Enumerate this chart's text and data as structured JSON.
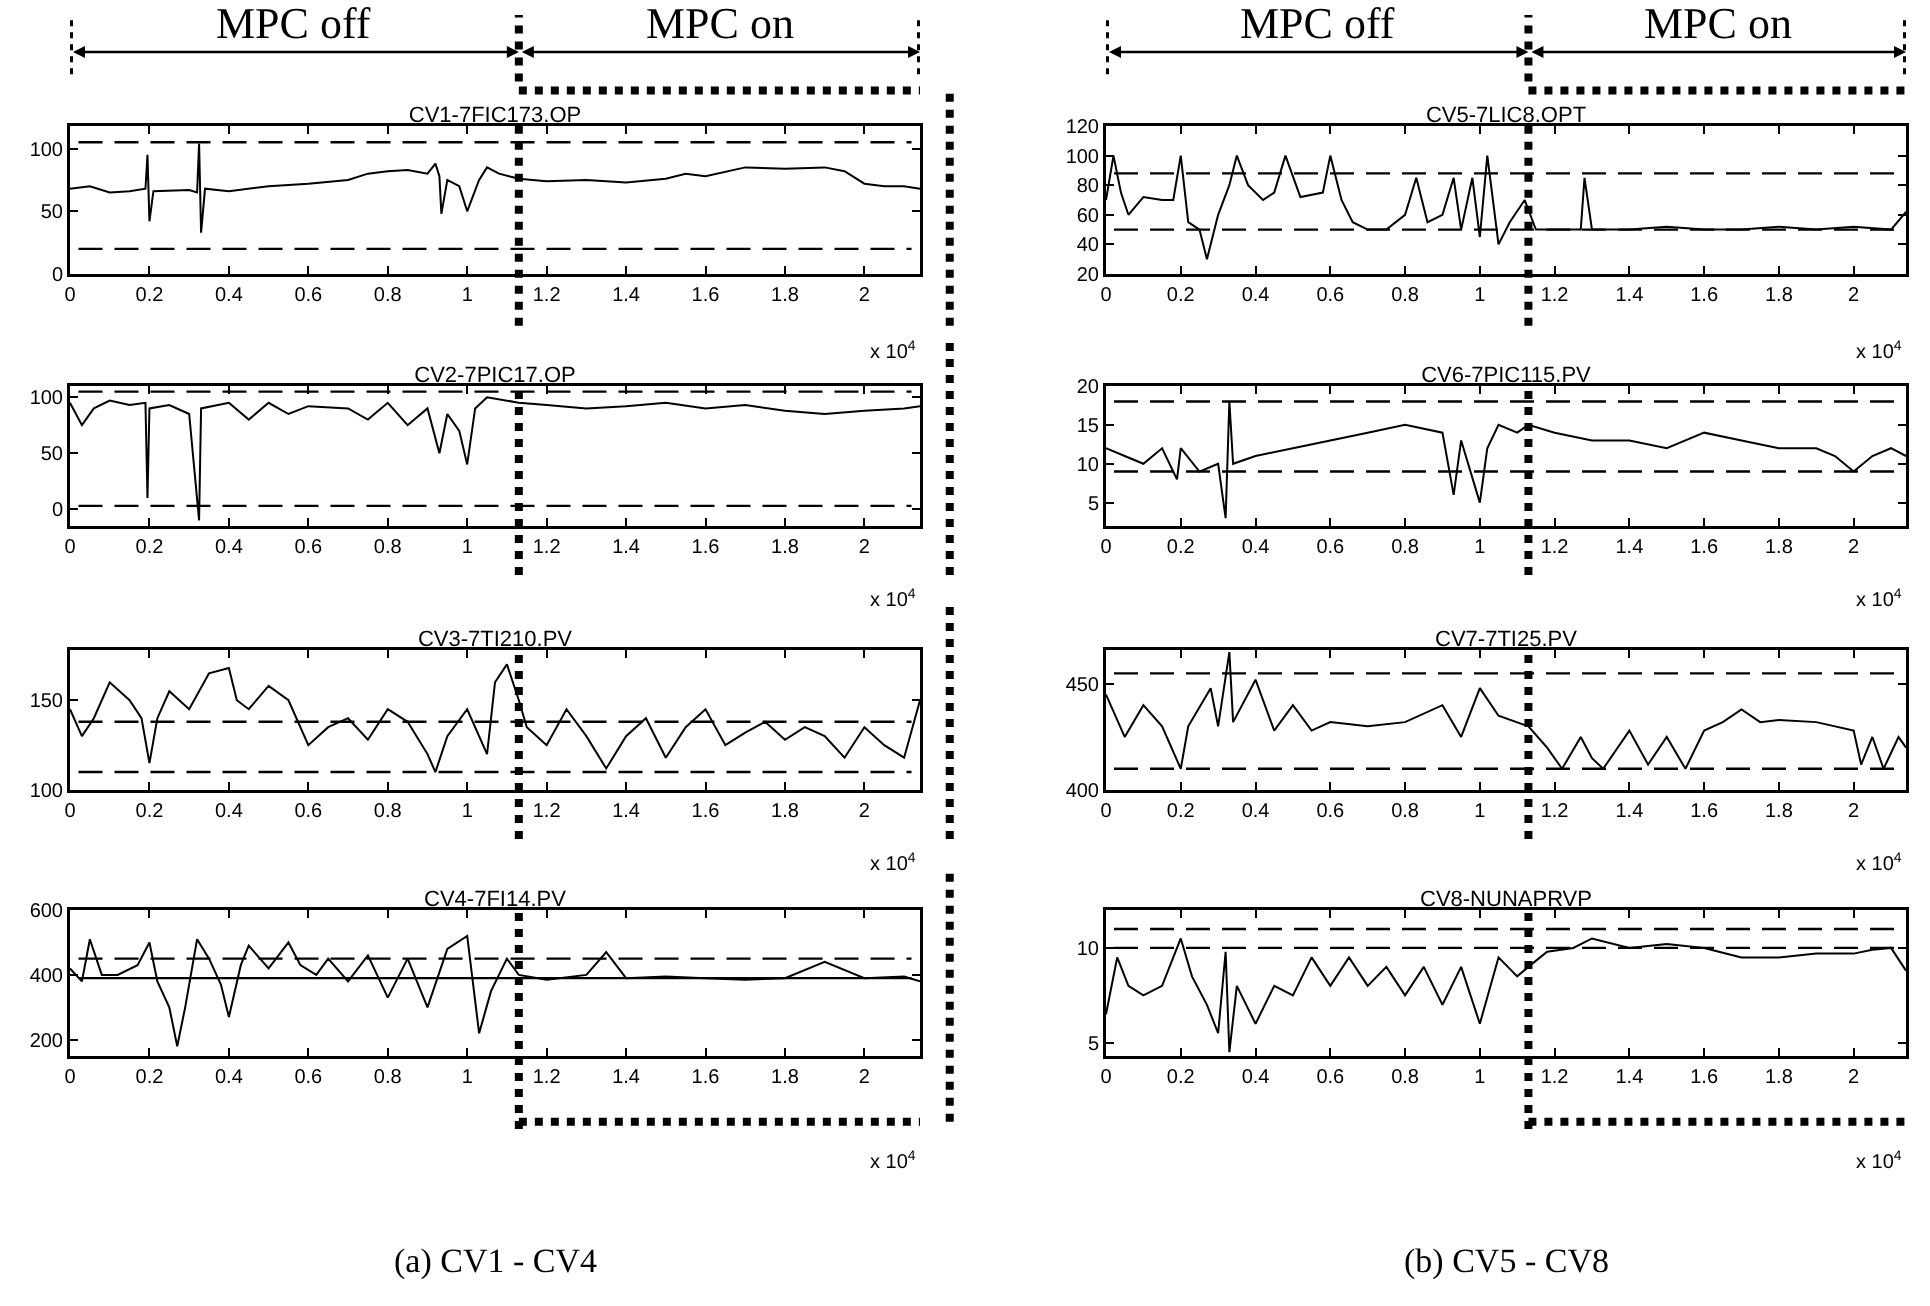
{
  "chart_data": [
    {
      "type": "line",
      "title": "CV1-7FIC173.OP",
      "xlim": [
        0,
        2.14
      ],
      "xticks": [
        0,
        0.2,
        0.4,
        0.6,
        0.8,
        1,
        1.2,
        1.4,
        1.6,
        1.8,
        2
      ],
      "ylim": [
        0,
        118
      ],
      "yticks": [
        0,
        50,
        100
      ],
      "line_style": "solid",
      "series": [
        {
          "color": "#000000",
          "x": [
            0,
            0.05,
            0.1,
            0.15,
            0.19,
            0.195,
            0.2,
            0.21,
            0.3,
            0.32,
            0.325,
            0.33,
            0.34,
            0.4,
            0.5,
            0.6,
            0.7,
            0.75,
            0.8,
            0.85,
            0.9,
            0.92,
            0.93,
            0.935,
            0.95,
            0.98,
            1.0,
            1.03,
            1.05,
            1.08,
            1.13,
            1.2,
            1.3,
            1.4,
            1.5,
            1.55,
            1.6,
            1.7,
            1.8,
            1.9,
            1.95,
            2.0,
            2.05,
            2.1,
            2.14
          ],
          "values": [
            68,
            70,
            65,
            66,
            68,
            95,
            42,
            66,
            67,
            65,
            104,
            33,
            68,
            66,
            70,
            72,
            75,
            80,
            82,
            83,
            80,
            88,
            78,
            48,
            75,
            70,
            50,
            75,
            85,
            80,
            76,
            74,
            75,
            73,
            76,
            80,
            78,
            85,
            84,
            85,
            82,
            72,
            70,
            70,
            68
          ]
        }
      ],
      "ref_lines": [
        {
          "axis": "y",
          "value": 105,
          "line_style": "dashed"
        },
        {
          "axis": "y",
          "value": 20,
          "line_style": "dashed"
        },
        {
          "axis": "x",
          "value": 1.13,
          "line_style": "dotted"
        }
      ],
      "annotations": [
        "x 10$^{4}$",
        "MPC off",
        "MPC on"
      ]
    },
    {
      "type": "line",
      "title": "CV2-7PIC17.OP",
      "xlim": [
        0,
        2.14
      ],
      "xticks": [
        0,
        0.2,
        0.4,
        0.6,
        0.8,
        1,
        1.2,
        1.4,
        1.6,
        1.8,
        2
      ],
      "ylim": [
        -15,
        110
      ],
      "yticks": [
        0,
        50,
        100
      ],
      "line_style": "solid",
      "series": [
        {
          "color": "#000000",
          "x": [
            0,
            0.03,
            0.06,
            0.1,
            0.15,
            0.19,
            0.195,
            0.2,
            0.25,
            0.3,
            0.325,
            0.33,
            0.4,
            0.45,
            0.5,
            0.55,
            0.6,
            0.7,
            0.75,
            0.8,
            0.85,
            0.9,
            0.93,
            0.95,
            0.98,
            1.0,
            1.02,
            1.05,
            1.13,
            1.2,
            1.3,
            1.4,
            1.5,
            1.6,
            1.7,
            1.8,
            1.9,
            2.0,
            2.1,
            2.14
          ],
          "values": [
            95,
            75,
            90,
            97,
            93,
            95,
            10,
            90,
            93,
            85,
            -10,
            90,
            95,
            80,
            95,
            85,
            92,
            90,
            80,
            95,
            75,
            90,
            50,
            85,
            70,
            40,
            90,
            100,
            95,
            93,
            90,
            92,
            95,
            90,
            93,
            88,
            85,
            88,
            90,
            92
          ]
        }
      ],
      "ref_lines": [
        {
          "axis": "y",
          "value": 105,
          "line_style": "dashed"
        },
        {
          "axis": "y",
          "value": 3,
          "line_style": "dashed"
        },
        {
          "axis": "x",
          "value": 1.13,
          "line_style": "dotted"
        }
      ],
      "annotations": [
        "x 10$^{4}$"
      ]
    },
    {
      "type": "line",
      "title": "CV3-7TI210.PV",
      "xlim": [
        0,
        2.14
      ],
      "xticks": [
        0,
        0.2,
        0.4,
        0.6,
        0.8,
        1,
        1.2,
        1.4,
        1.6,
        1.8,
        2
      ],
      "ylim": [
        100,
        178
      ],
      "yticks": [
        100,
        150
      ],
      "line_style": "solid",
      "series": [
        {
          "color": "#000000",
          "x": [
            0,
            0.03,
            0.06,
            0.1,
            0.15,
            0.18,
            0.2,
            0.22,
            0.25,
            0.3,
            0.35,
            0.4,
            0.42,
            0.45,
            0.5,
            0.55,
            0.6,
            0.65,
            0.7,
            0.75,
            0.8,
            0.85,
            0.9,
            0.92,
            0.95,
            1.0,
            1.05,
            1.07,
            1.1,
            1.13,
            1.15,
            1.2,
            1.25,
            1.3,
            1.35,
            1.4,
            1.45,
            1.5,
            1.55,
            1.6,
            1.65,
            1.7,
            1.75,
            1.8,
            1.85,
            1.9,
            1.95,
            2.0,
            2.05,
            2.1,
            2.14
          ],
          "values": [
            145,
            130,
            140,
            160,
            150,
            140,
            115,
            140,
            155,
            145,
            165,
            168,
            150,
            145,
            158,
            150,
            125,
            135,
            140,
            128,
            145,
            138,
            120,
            110,
            130,
            145,
            120,
            160,
            170,
            150,
            135,
            125,
            145,
            130,
            112,
            130,
            140,
            118,
            135,
            145,
            125,
            132,
            138,
            128,
            135,
            130,
            118,
            135,
            125,
            118,
            150
          ]
        }
      ],
      "ref_lines": [
        {
          "axis": "y",
          "value": 138,
          "line_style": "dashed"
        },
        {
          "axis": "y",
          "value": 110,
          "line_style": "dashed"
        },
        {
          "axis": "x",
          "value": 1.13,
          "line_style": "dotted"
        }
      ],
      "annotations": [
        "x 10$^{4}$"
      ]
    },
    {
      "type": "line",
      "title": "CV4-7FI14.PV",
      "xlim": [
        0,
        2.14
      ],
      "xticks": [
        0,
        0.2,
        0.4,
        0.6,
        0.8,
        1,
        1.2,
        1.4,
        1.6,
        1.8,
        2
      ],
      "ylim": [
        150,
        600
      ],
      "yticks": [
        200,
        400,
        600
      ],
      "line_style": "solid",
      "series": [
        {
          "color": "#000000",
          "x": [
            0,
            0.03,
            0.05,
            0.08,
            0.12,
            0.17,
            0.2,
            0.22,
            0.25,
            0.27,
            0.29,
            0.32,
            0.35,
            0.38,
            0.4,
            0.43,
            0.45,
            0.5,
            0.55,
            0.58,
            0.62,
            0.65,
            0.7,
            0.75,
            0.8,
            0.85,
            0.9,
            0.95,
            1.0,
            1.03,
            1.06,
            1.1,
            1.13,
            1.2,
            1.3,
            1.35,
            1.4,
            1.5,
            1.6,
            1.7,
            1.8,
            1.9,
            2.0,
            2.1,
            2.14
          ],
          "values": [
            420,
            380,
            510,
            400,
            400,
            430,
            500,
            380,
            300,
            180,
            300,
            510,
            450,
            370,
            270,
            430,
            490,
            420,
            500,
            430,
            400,
            450,
            380,
            460,
            330,
            450,
            300,
            480,
            520,
            220,
            350,
            450,
            400,
            385,
            400,
            470,
            390,
            395,
            390,
            385,
            390,
            440,
            390,
            395,
            380
          ]
        }
      ],
      "ref_lines": [
        {
          "axis": "y",
          "value": 450,
          "line_style": "dashed"
        },
        {
          "axis": "y",
          "value": 390,
          "line_style": "solid"
        },
        {
          "axis": "x",
          "value": 1.13,
          "line_style": "dotted"
        }
      ],
      "annotations": [
        "x 10$^{4}$",
        "(a) CV1 - CV4"
      ]
    },
    {
      "type": "line",
      "title": "CV5-7LIC8.OPT",
      "xlim": [
        0,
        2.14
      ],
      "xticks": [
        0,
        0.2,
        0.4,
        0.6,
        0.8,
        1,
        1.2,
        1.4,
        1.6,
        1.8,
        2
      ],
      "ylim": [
        20,
        120
      ],
      "yticks": [
        20,
        40,
        60,
        80,
        100,
        120
      ],
      "line_style": "solid",
      "series": [
        {
          "color": "#000000",
          "x": [
            0,
            0.02,
            0.04,
            0.06,
            0.1,
            0.15,
            0.18,
            0.2,
            0.22,
            0.25,
            0.27,
            0.3,
            0.33,
            0.35,
            0.38,
            0.42,
            0.45,
            0.48,
            0.52,
            0.58,
            0.6,
            0.63,
            0.66,
            0.7,
            0.75,
            0.8,
            0.83,
            0.86,
            0.9,
            0.93,
            0.95,
            0.98,
            1.0,
            1.02,
            1.05,
            1.08,
            1.12,
            1.15,
            1.2,
            1.27,
            1.28,
            1.3,
            1.4,
            1.5,
            1.6,
            1.7,
            1.8,
            1.9,
            2.0,
            2.1,
            2.14
          ],
          "values": [
            70,
            100,
            75,
            60,
            72,
            70,
            70,
            100,
            55,
            50,
            30,
            60,
            80,
            100,
            80,
            70,
            75,
            100,
            72,
            75,
            100,
            70,
            55,
            50,
            50,
            60,
            85,
            55,
            60,
            85,
            50,
            85,
            45,
            100,
            40,
            55,
            70,
            50,
            50,
            50,
            85,
            50,
            50,
            52,
            50,
            50,
            52,
            50,
            52,
            50,
            62
          ]
        }
      ],
      "ref_lines": [
        {
          "axis": "y",
          "value": 88,
          "line_style": "dashed"
        },
        {
          "axis": "y",
          "value": 50,
          "line_style": "dashed"
        },
        {
          "axis": "x",
          "value": 1.13,
          "line_style": "dotted"
        }
      ],
      "annotations": [
        "x 10$^{4}$",
        "MPC off",
        "MPC on"
      ]
    },
    {
      "type": "line",
      "title": "CV6-7PIC115.PV",
      "xlim": [
        0,
        2.14
      ],
      "xticks": [
        0,
        0.2,
        0.4,
        0.6,
        0.8,
        1,
        1.2,
        1.4,
        1.6,
        1.8,
        2
      ],
      "ylim": [
        2,
        20
      ],
      "yticks": [
        5,
        10,
        15,
        20
      ],
      "line_style": "solid",
      "series": [
        {
          "color": "#000000",
          "x": [
            0,
            0.05,
            0.1,
            0.15,
            0.19,
            0.2,
            0.25,
            0.3,
            0.32,
            0.33,
            0.34,
            0.4,
            0.5,
            0.6,
            0.7,
            0.8,
            0.9,
            0.93,
            0.95,
            1.0,
            1.02,
            1.05,
            1.1,
            1.13,
            1.2,
            1.3,
            1.4,
            1.5,
            1.55,
            1.6,
            1.7,
            1.8,
            1.9,
            1.95,
            2.0,
            2.05,
            2.1,
            2.14
          ],
          "values": [
            12,
            11,
            10,
            12,
            8,
            12,
            9,
            10,
            3,
            18,
            10,
            11,
            12,
            13,
            14,
            15,
            14,
            6,
            13,
            5,
            12,
            15,
            14,
            15,
            14,
            13,
            13,
            12,
            13,
            14,
            13,
            12,
            12,
            11,
            9,
            11,
            12,
            11
          ]
        }
      ],
      "ref_lines": [
        {
          "axis": "y",
          "value": 18,
          "line_style": "dashed"
        },
        {
          "axis": "y",
          "value": 9,
          "line_style": "dashed"
        },
        {
          "axis": "x",
          "value": 1.13,
          "line_style": "dotted"
        }
      ],
      "annotations": [
        "x 10$^{4}$"
      ]
    },
    {
      "type": "line",
      "title": "CV7-7TI25.PV",
      "xlim": [
        0,
        2.14
      ],
      "xticks": [
        0,
        0.2,
        0.4,
        0.6,
        0.8,
        1,
        1.2,
        1.4,
        1.6,
        1.8,
        2
      ],
      "ylim": [
        400,
        466
      ],
      "yticks": [
        400,
        450
      ],
      "line_style": "solid",
      "series": [
        {
          "color": "#000000",
          "x": [
            0,
            0.05,
            0.1,
            0.15,
            0.2,
            0.22,
            0.28,
            0.3,
            0.33,
            0.34,
            0.4,
            0.45,
            0.5,
            0.55,
            0.6,
            0.7,
            0.8,
            0.9,
            0.95,
            1.0,
            1.05,
            1.13,
            1.18,
            1.22,
            1.27,
            1.3,
            1.33,
            1.4,
            1.45,
            1.5,
            1.55,
            1.6,
            1.65,
            1.7,
            1.75,
            1.8,
            1.9,
            2.0,
            2.02,
            2.05,
            2.08,
            2.12,
            2.14
          ],
          "values": [
            445,
            425,
            440,
            430,
            410,
            430,
            448,
            430,
            465,
            432,
            452,
            428,
            440,
            428,
            432,
            430,
            432,
            440,
            425,
            448,
            435,
            430,
            420,
            410,
            425,
            415,
            410,
            428,
            412,
            425,
            410,
            428,
            432,
            438,
            432,
            433,
            432,
            428,
            412,
            425,
            410,
            425,
            420
          ]
        }
      ],
      "ref_lines": [
        {
          "axis": "y",
          "value": 455,
          "line_style": "dashed"
        },
        {
          "axis": "y",
          "value": 410,
          "line_style": "dashed"
        },
        {
          "axis": "x",
          "value": 1.13,
          "line_style": "dotted"
        }
      ],
      "annotations": [
        "x 10$^{4}$"
      ]
    },
    {
      "type": "line",
      "title": "CV8-NUNAPRVP",
      "xlim": [
        0,
        2.14
      ],
      "xticks": [
        0,
        0.2,
        0.4,
        0.6,
        0.8,
        1,
        1.2,
        1.4,
        1.6,
        1.8,
        2
      ],
      "ylim": [
        4.3,
        12
      ],
      "yticks": [
        5,
        10
      ],
      "line_style": "solid",
      "series": [
        {
          "color": "#000000",
          "x": [
            0,
            0.03,
            0.06,
            0.1,
            0.15,
            0.2,
            0.23,
            0.27,
            0.3,
            0.32,
            0.33,
            0.35,
            0.4,
            0.45,
            0.5,
            0.55,
            0.6,
            0.65,
            0.7,
            0.75,
            0.8,
            0.85,
            0.9,
            0.95,
            1.0,
            1.05,
            1.1,
            1.13,
            1.18,
            1.25,
            1.3,
            1.4,
            1.5,
            1.6,
            1.7,
            1.8,
            1.9,
            2.0,
            2.05,
            2.1,
            2.14
          ],
          "values": [
            6.5,
            9.5,
            8,
            7.5,
            8,
            10.5,
            8.5,
            7,
            5.5,
            9.8,
            4.5,
            8,
            6,
            8,
            7.5,
            9.5,
            8,
            9.5,
            8,
            9,
            7.5,
            9,
            7,
            9,
            6,
            9.5,
            8.5,
            9,
            9.8,
            10,
            10.5,
            10,
            10.2,
            10,
            9.5,
            9.5,
            9.7,
            9.7,
            9.9,
            10,
            8.8
          ]
        }
      ],
      "ref_lines": [
        {
          "axis": "y",
          "value": 11,
          "line_style": "dashed"
        },
        {
          "axis": "y",
          "value": 10,
          "line_style": "dashed"
        },
        {
          "axis": "x",
          "value": 1.13,
          "line_style": "dotted"
        }
      ],
      "annotations": [
        "x 10$^{4}$",
        "(b) CV5 - CV8"
      ]
    }
  ]
}
